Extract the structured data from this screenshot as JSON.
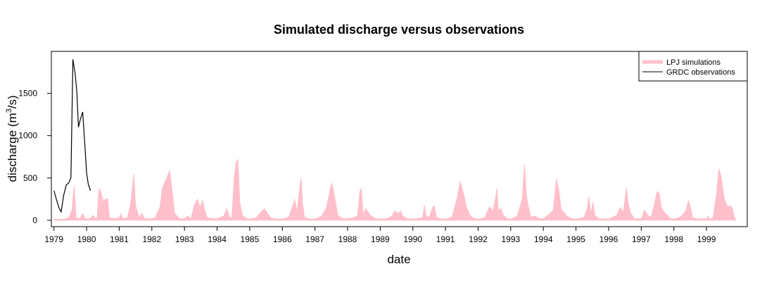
{
  "chart_data": {
    "type": "area",
    "title": "Simulated discharge versus observations",
    "xlabel": "date",
    "ylabel": "discharge (m",
    "ylabel_superscript": "3",
    "ylabel_suffix": "/s)",
    "x_ticks": [
      "1979",
      "1980",
      "1981",
      "1982",
      "1983",
      "1984",
      "1985",
      "1986",
      "1987",
      "1988",
      "1989",
      "1990",
      "1991",
      "1992",
      "1993",
      "1994",
      "1995",
      "1996",
      "1997",
      "1998",
      "1999"
    ],
    "y_ticks": [
      0,
      500,
      1000,
      1500
    ],
    "xlim": [
      1978.92,
      2000.25
    ],
    "ylim": [
      -75,
      1995
    ],
    "legend": {
      "placement": "top-right",
      "entries": [
        {
          "label": "LPJ simulations",
          "style": "thick-line",
          "color": "#ffc0cb"
        },
        {
          "label": "GRDC observations",
          "style": "line",
          "color": "#000000"
        }
      ]
    },
    "series": [
      {
        "name": "LPJ simulations",
        "kind": "area",
        "color": "#ffc0cb",
        "points": [
          [
            1979.0,
            10
          ],
          [
            1979.3,
            15
          ],
          [
            1979.45,
            30
          ],
          [
            1979.55,
            120
          ],
          [
            1979.62,
            420
          ],
          [
            1979.68,
            30
          ],
          [
            1979.8,
            20
          ],
          [
            1979.88,
            80
          ],
          [
            1979.95,
            15
          ],
          [
            1980.1,
            20
          ],
          [
            1980.2,
            60
          ],
          [
            1980.28,
            20
          ],
          [
            1980.32,
            30
          ],
          [
            1980.38,
            380
          ],
          [
            1980.45,
            320
          ],
          [
            1980.52,
            220
          ],
          [
            1980.6,
            260
          ],
          [
            1980.65,
            250
          ],
          [
            1980.7,
            30
          ],
          [
            1980.9,
            20
          ],
          [
            1981.0,
            30
          ],
          [
            1981.05,
            80
          ],
          [
            1981.1,
            20
          ],
          [
            1981.25,
            30
          ],
          [
            1981.35,
            200
          ],
          [
            1981.45,
            550
          ],
          [
            1981.5,
            180
          ],
          [
            1981.6,
            40
          ],
          [
            1981.7,
            80
          ],
          [
            1981.78,
            20
          ],
          [
            1982.0,
            20
          ],
          [
            1982.1,
            30
          ],
          [
            1982.25,
            160
          ],
          [
            1982.32,
            380
          ],
          [
            1982.45,
            500
          ],
          [
            1982.55,
            590
          ],
          [
            1982.62,
            350
          ],
          [
            1982.7,
            80
          ],
          [
            1982.85,
            20
          ],
          [
            1983.0,
            20
          ],
          [
            1983.1,
            50
          ],
          [
            1983.2,
            20
          ],
          [
            1983.3,
            180
          ],
          [
            1983.4,
            250
          ],
          [
            1983.48,
            150
          ],
          [
            1983.55,
            240
          ],
          [
            1983.62,
            120
          ],
          [
            1983.7,
            30
          ],
          [
            1983.9,
            20
          ],
          [
            1984.0,
            20
          ],
          [
            1984.2,
            50
          ],
          [
            1984.3,
            140
          ],
          [
            1984.38,
            40
          ],
          [
            1984.45,
            30
          ],
          [
            1984.52,
            500
          ],
          [
            1984.58,
            680
          ],
          [
            1984.64,
            720
          ],
          [
            1984.7,
            200
          ],
          [
            1984.78,
            60
          ],
          [
            1984.9,
            20
          ],
          [
            1985.0,
            15
          ],
          [
            1985.2,
            30
          ],
          [
            1985.35,
            100
          ],
          [
            1985.45,
            140
          ],
          [
            1985.55,
            80
          ],
          [
            1985.65,
            30
          ],
          [
            1985.8,
            15
          ],
          [
            1986.0,
            15
          ],
          [
            1986.2,
            40
          ],
          [
            1986.3,
            150
          ],
          [
            1986.38,
            250
          ],
          [
            1986.45,
            100
          ],
          [
            1986.55,
            450
          ],
          [
            1986.58,
            500
          ],
          [
            1986.62,
            200
          ],
          [
            1986.68,
            40
          ],
          [
            1986.85,
            15
          ],
          [
            1987.0,
            15
          ],
          [
            1987.2,
            50
          ],
          [
            1987.35,
            150
          ],
          [
            1987.48,
            390
          ],
          [
            1987.52,
            440
          ],
          [
            1987.6,
            280
          ],
          [
            1987.7,
            60
          ],
          [
            1987.85,
            20
          ],
          [
            1988.0,
            20
          ],
          [
            1988.15,
            30
          ],
          [
            1988.3,
            50
          ],
          [
            1988.38,
            350
          ],
          [
            1988.42,
            380
          ],
          [
            1988.48,
            60
          ],
          [
            1988.55,
            140
          ],
          [
            1988.62,
            100
          ],
          [
            1988.7,
            60
          ],
          [
            1988.85,
            20
          ],
          [
            1989.0,
            15
          ],
          [
            1989.2,
            20
          ],
          [
            1989.35,
            50
          ],
          [
            1989.45,
            110
          ],
          [
            1989.55,
            80
          ],
          [
            1989.62,
            110
          ],
          [
            1989.7,
            50
          ],
          [
            1989.85,
            15
          ],
          [
            1990.0,
            15
          ],
          [
            1990.3,
            30
          ],
          [
            1990.35,
            180
          ],
          [
            1990.4,
            60
          ],
          [
            1990.5,
            30
          ],
          [
            1990.6,
            150
          ],
          [
            1990.66,
            170
          ],
          [
            1990.72,
            40
          ],
          [
            1990.85,
            15
          ],
          [
            1991.0,
            15
          ],
          [
            1991.2,
            40
          ],
          [
            1991.35,
            250
          ],
          [
            1991.45,
            460
          ],
          [
            1991.55,
            320
          ],
          [
            1991.65,
            150
          ],
          [
            1991.75,
            60
          ],
          [
            1991.88,
            20
          ],
          [
            1992.0,
            15
          ],
          [
            1992.2,
            30
          ],
          [
            1992.35,
            160
          ],
          [
            1992.45,
            110
          ],
          [
            1992.52,
            230
          ],
          [
            1992.58,
            380
          ],
          [
            1992.62,
            120
          ],
          [
            1992.7,
            140
          ],
          [
            1992.78,
            60
          ],
          [
            1992.9,
            20
          ],
          [
            1993.0,
            15
          ],
          [
            1993.2,
            50
          ],
          [
            1993.35,
            250
          ],
          [
            1993.42,
            660
          ],
          [
            1993.48,
            300
          ],
          [
            1993.55,
            150
          ],
          [
            1993.62,
            40
          ],
          [
            1993.75,
            50
          ],
          [
            1993.88,
            20
          ],
          [
            1994.0,
            20
          ],
          [
            1994.2,
            80
          ],
          [
            1994.3,
            120
          ],
          [
            1994.4,
            490
          ],
          [
            1994.48,
            340
          ],
          [
            1994.55,
            120
          ],
          [
            1994.62,
            100
          ],
          [
            1994.72,
            50
          ],
          [
            1994.88,
            20
          ],
          [
            1995.0,
            15
          ],
          [
            1995.25,
            40
          ],
          [
            1995.35,
            150
          ],
          [
            1995.4,
            280
          ],
          [
            1995.46,
            80
          ],
          [
            1995.52,
            220
          ],
          [
            1995.58,
            60
          ],
          [
            1995.7,
            20
          ],
          [
            1995.88,
            15
          ],
          [
            1996.0,
            15
          ],
          [
            1996.25,
            60
          ],
          [
            1996.35,
            150
          ],
          [
            1996.45,
            100
          ],
          [
            1996.55,
            390
          ],
          [
            1996.6,
            200
          ],
          [
            1996.68,
            80
          ],
          [
            1996.8,
            20
          ],
          [
            1997.0,
            20
          ],
          [
            1997.1,
            120
          ],
          [
            1997.2,
            60
          ],
          [
            1997.3,
            40
          ],
          [
            1997.4,
            180
          ],
          [
            1997.48,
            340
          ],
          [
            1997.55,
            320
          ],
          [
            1997.62,
            150
          ],
          [
            1997.7,
            100
          ],
          [
            1997.8,
            60
          ],
          [
            1997.9,
            20
          ],
          [
            1998.0,
            15
          ],
          [
            1998.2,
            40
          ],
          [
            1998.35,
            100
          ],
          [
            1998.45,
            230
          ],
          [
            1998.5,
            170
          ],
          [
            1998.58,
            30
          ],
          [
            1998.75,
            15
          ],
          [
            1999.0,
            15
          ],
          [
            1999.05,
            50
          ],
          [
            1999.1,
            10
          ],
          [
            1999.2,
            30
          ],
          [
            1999.3,
            300
          ],
          [
            1999.38,
            610
          ],
          [
            1999.45,
            520
          ],
          [
            1999.55,
            250
          ],
          [
            1999.65,
            160
          ],
          [
            1999.75,
            170
          ],
          [
            1999.8,
            140
          ],
          [
            1999.85,
            40
          ],
          [
            1999.9,
            10
          ]
        ]
      },
      {
        "name": "GRDC observations",
        "kind": "line",
        "color": "#000000",
        "points": [
          [
            1979.0,
            350
          ],
          [
            1979.08,
            240
          ],
          [
            1979.15,
            150
          ],
          [
            1979.22,
            100
          ],
          [
            1979.3,
            300
          ],
          [
            1979.38,
            420
          ],
          [
            1979.45,
            440
          ],
          [
            1979.52,
            500
          ],
          [
            1979.58,
            1900
          ],
          [
            1979.65,
            1730
          ],
          [
            1979.7,
            1520
          ],
          [
            1979.75,
            1100
          ],
          [
            1979.8,
            1180
          ],
          [
            1979.88,
            1280
          ],
          [
            1979.95,
            860
          ],
          [
            1980.0,
            560
          ],
          [
            1980.05,
            430
          ],
          [
            1980.12,
            350
          ]
        ]
      }
    ]
  }
}
